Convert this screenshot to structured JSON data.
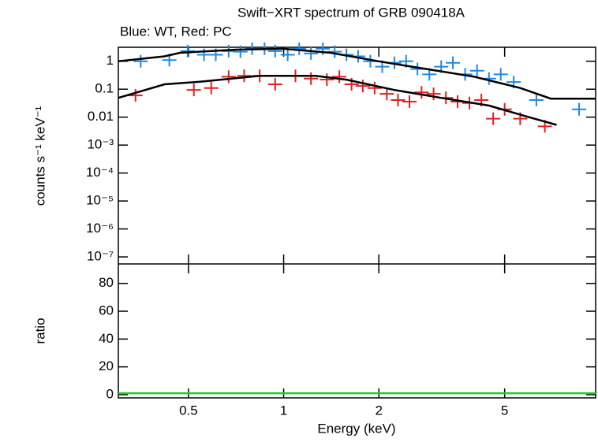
{
  "chart_data": [
    {
      "type": "scatter",
      "title": "Swift−XRT spectrum of GRB 090418A",
      "subtitle": "Blue: WT, Red: PC",
      "ylabel": "counts s⁻¹ keV⁻¹",
      "log_x": true,
      "log_y": true,
      "xlim": [
        0.3,
        9.7
      ],
      "xticks": [
        0.5,
        1,
        2,
        5
      ],
      "ylim": [
        5.6e-08,
        3.16
      ],
      "yticks": [
        1,
        0.1,
        0.01,
        {
          "value": 0.001,
          "label": "10⁻³"
        },
        {
          "value": 0.0001,
          "label": "10⁻⁴"
        },
        {
          "value": 1e-05,
          "label": "10⁻⁵"
        },
        {
          "value": 1e-06,
          "label": "10⁻⁶"
        },
        {
          "value": 1e-07,
          "label": "10⁻⁷"
        }
      ],
      "series": [
        {
          "color": "#1e88e5",
          "x": [
            0.353,
            0.435,
            0.497,
            0.56,
            0.61,
            0.67,
            0.73,
            0.795,
            0.87,
            0.94,
            1.03,
            1.12,
            1.22,
            1.33,
            1.45,
            1.58,
            1.72,
            1.88,
            2.05,
            2.24,
            2.44,
            2.65,
            2.89,
            3.15,
            3.43,
            3.75,
            4.09,
            4.46,
            4.86,
            5.34,
            6.3,
            8.6
          ],
          "values": [
            1,
            1.1,
            2.3,
            1.7,
            1.7,
            2.3,
            2.2,
            2.8,
            2.8,
            2.3,
            1.7,
            2.8,
            1.9,
            2.8,
            2.2,
            1.7,
            1.5,
            1,
            0.64,
            0.88,
            1,
            0.53,
            0.34,
            0.64,
            0.88,
            0.34,
            0.46,
            0.24,
            0.34,
            0.18,
            0.041,
            0.019
          ]
        },
        {
          "color": "#e02020",
          "x": [
            0.34,
            0.52,
            0.59,
            0.67,
            0.75,
            0.84,
            0.94,
            1.09,
            1.22,
            1.37,
            1.5,
            1.64,
            1.78,
            1.94,
            2.12,
            2.3,
            2.5,
            2.73,
            2.98,
            3.26,
            3.55,
            3.87,
            4.22,
            4.6,
            5.0,
            5.6,
            6.7
          ],
          "values": [
            0.06,
            0.094,
            0.11,
            0.28,
            0.3,
            0.3,
            0.15,
            0.3,
            0.24,
            0.22,
            0.28,
            0.15,
            0.13,
            0.11,
            0.068,
            0.041,
            0.036,
            0.077,
            0.068,
            0.049,
            0.036,
            0.032,
            0.041,
            0.0088,
            0.019,
            0.0088,
            0.0047
          ]
        }
      ],
      "models": [
        {
          "color": "#000000",
          "x": [
            0.3,
            0.42,
            0.47,
            0.71,
            1.0,
            1.41,
            1.99,
            2.82,
            4.0,
            5.6,
            7.0,
            9.7
          ],
          "values": [
            1,
            1.5,
            2.0,
            2.6,
            2.8,
            2.0,
            1.0,
            0.53,
            0.28,
            0.11,
            0.046,
            0.046
          ]
        },
        {
          "color": "#000000",
          "x": [
            0.3,
            0.42,
            0.56,
            0.84,
            1.26,
            1.58,
            2.24,
            3.15,
            4.46,
            5.97,
            7.3
          ],
          "values": [
            0.049,
            0.15,
            0.19,
            0.3,
            0.3,
            0.22,
            0.094,
            0.049,
            0.026,
            0.01,
            0.0053
          ]
        }
      ]
    },
    {
      "type": "line",
      "xlabel": "Energy (keV)",
      "ylabel": "ratio",
      "log_x": true,
      "xlim": [
        0.3,
        9.7
      ],
      "xticks": [
        0.5,
        1,
        2,
        5
      ],
      "ylim": [
        -2.3,
        94
      ],
      "yticks": [
        0,
        20,
        40,
        60,
        80
      ],
      "reference_line": 1,
      "reference_color": "#22cc22"
    }
  ]
}
